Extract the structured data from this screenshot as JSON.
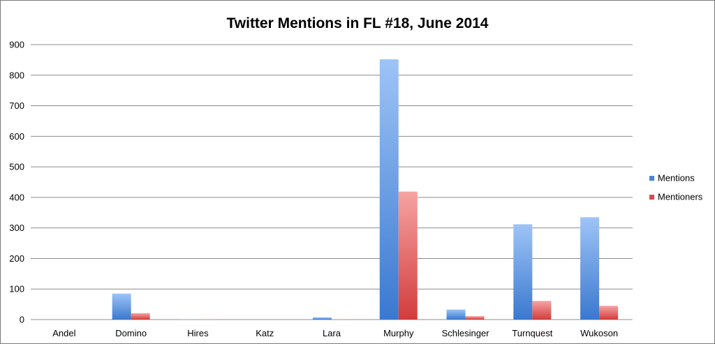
{
  "chart_data": {
    "type": "bar",
    "title": "Twitter Mentions in FL #18, June 2014",
    "categories": [
      "Andel",
      "Domino",
      "Hires",
      "Katz",
      "Lara",
      "Murphy",
      "Schlesinger",
      "Turnquest",
      "Wukoson"
    ],
    "series": [
      {
        "name": "Mentions",
        "values": [
          0,
          85,
          1,
          0,
          7,
          852,
          33,
          312,
          335
        ],
        "color": "#4a84d4"
      },
      {
        "name": "Mentioners",
        "values": [
          0,
          21,
          1,
          0,
          1,
          419,
          11,
          61,
          45
        ],
        "color": "#d94a4a"
      }
    ],
    "ylim": [
      0,
      900
    ],
    "yticks": [
      0,
      100,
      200,
      300,
      400,
      500,
      600,
      700,
      800,
      900
    ],
    "grid": true,
    "legend": "right",
    "xlabel": "",
    "ylabel": ""
  }
}
